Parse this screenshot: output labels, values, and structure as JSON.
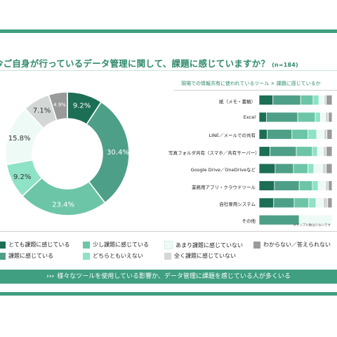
{
  "question": {
    "text": "今ご自身が行っているデータ管理に関して、課題に感じていますか？",
    "n_label": "(n=184)"
  },
  "legend": [
    {
      "label": "とても課題に感じている",
      "color": "#1c6e55"
    },
    {
      "label": "少し課題に感じている",
      "color": "#6cc5a7"
    },
    {
      "label": "あまり課題に感じていない",
      "color": "#eefaf6"
    },
    {
      "label": "わからない／答えられない",
      "color": "#9a9a9a"
    },
    {
      "label": "課題に感じている",
      "color": "#4e9f87"
    },
    {
      "label": "どちらともいえない",
      "color": "#8ee2c6"
    },
    {
      "label": "全く課題に感じていない",
      "color": "#d3d8d6"
    }
  ],
  "banner": {
    "chevrons": "›››",
    "text": "様々なツールを使用している影響か、データ管理に課題を感じている人が多くいる"
  },
  "chart_data": [
    {
      "type": "pie",
      "categories": [
        "とても課題に感じている",
        "課題に感じている",
        "少し課題に感じている",
        "どちらともいえない",
        "あまり課題に感じていない",
        "全く課題に感じていない",
        "わからない／答えられない"
      ],
      "values": [
        9.2,
        30.4,
        23.4,
        9.2,
        15.8,
        7.1,
        4.9
      ],
      "labels": [
        "9.2%",
        "30.4%",
        "23.4%",
        "9.2%",
        "15.8%",
        "7.1%",
        "4.9%"
      ],
      "colors": [
        "#1c6e55",
        "#4e9f87",
        "#6cc5a7",
        "#8ee2c6",
        "#eefaf6",
        "#d3d8d6",
        "#9a9a9a"
      ],
      "label_colors": [
        "#ffffff",
        "#ffffff",
        "#ffffff",
        "#333333",
        "#333333",
        "#333333",
        "#ffffff"
      ]
    },
    {
      "type": "bar",
      "stacked": true,
      "orientation": "horizontal",
      "title": "現場での情報共有に使われているツール × 課題に感じているか",
      "categories": [
        "紙（メモ・書類）",
        "Excel",
        "LINE／メールでの共有",
        "写真フォルダ共有（スマホ／共有サーバー）",
        "Google Drive／OneDriveなど",
        "業務用アプリ・クラウドツール",
        "自社専用システム",
        "その他"
      ],
      "series": [
        {
          "name": "とても課題に感じている",
          "color": "#1c6e55",
          "values": [
            19,
            10,
            11,
            15,
            22,
            21,
            20,
            0
          ]
        },
        {
          "name": "課題に感じている",
          "color": "#4e9f87",
          "values": [
            38,
            43,
            34,
            36,
            25,
            34,
            28,
            55
          ]
        },
        {
          "name": "少し課題に感じている",
          "color": "#6cc5a7",
          "values": [
            17,
            24,
            22,
            22,
            20,
            18,
            20,
            0
          ]
        },
        {
          "name": "どちらともいえない",
          "color": "#8ee2c6",
          "values": [
            8,
            7,
            12,
            7,
            8,
            8,
            10,
            0
          ]
        },
        {
          "name": "あまり課題に感じていない",
          "color": "#eefaf6",
          "values": [
            7,
            7,
            10,
            8,
            12,
            10,
            10,
            45
          ]
        },
        {
          "name": "全く課題に感じていない",
          "color": "#d3d8d6",
          "values": [
            3,
            4,
            4,
            4,
            5,
            4,
            6,
            0
          ]
        },
        {
          "name": "わからない／答えられない",
          "color": "#9a9a9a",
          "values": [
            8,
            5,
            7,
            8,
            8,
            5,
            6,
            0
          ]
        }
      ],
      "xlim": [
        0,
        100
      ],
      "footnote": "※サンプル数は少ないです"
    }
  ]
}
